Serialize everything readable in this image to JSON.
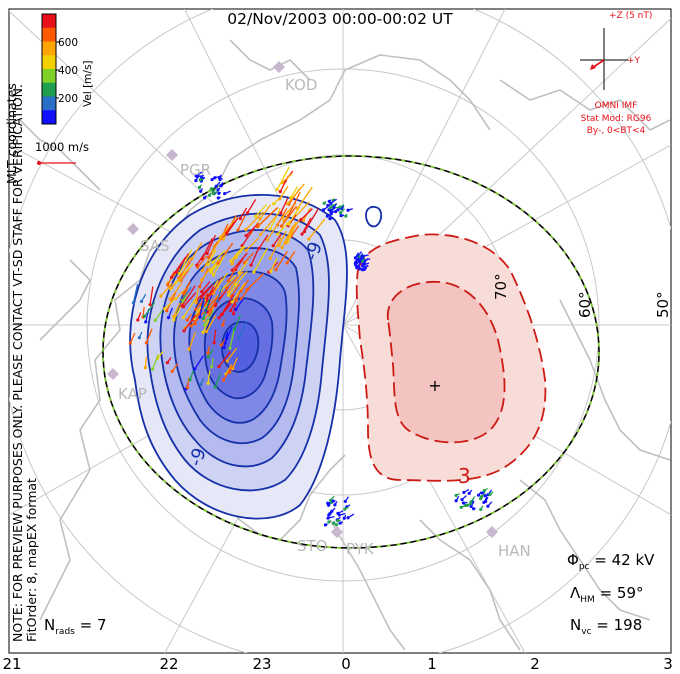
{
  "title": "02/Nov/2003 00:00-00:02 UT",
  "coordinates_label": "MLT coordinates",
  "note": "NOTE: FOR PREVIEW PURPOSES ONLY. PLEASE CONTACT VT-SD STAFF FOR VERIFICATION.",
  "fit_order": "FitOrder: 8, mapEX format",
  "colorbar": {
    "label": "Vel [m/s]",
    "ticks": [
      "600",
      "400",
      "200"
    ],
    "colors": [
      "#e8101a",
      "#ff5a00",
      "#ffa500",
      "#f5d000",
      "#7fd12a",
      "#1f9f4f",
      "#2a6ec8",
      "#1010ff"
    ]
  },
  "vector_scale": "1000 m/s",
  "imf": {
    "z_label": "+Z (5 nT)",
    "y_label": "+Y",
    "source": "OMNI IMF",
    "stat_mod": "Stat Mod: RG96",
    "condition": "By-, 0<BT<4"
  },
  "stats": {
    "phi_pc_label": "Φ",
    "phi_pc_sub": "pc",
    "phi_pc_value": "= 42 kV",
    "lambda_hm_label": "Λ",
    "lambda_hm_sub": "HM",
    "lambda_hm_value": "= 59°",
    "n_vc_label": "N",
    "n_vc_sub": "vc",
    "n_vc_value": "= 198",
    "n_rads_label": "N",
    "n_rads_sub": "rads",
    "n_rads_value": "= 7"
  },
  "mlt_ticks": [
    "21",
    "22",
    "23",
    "0",
    "1",
    "2",
    "3"
  ],
  "latitude_labels": [
    "70°",
    "60°",
    "50°"
  ],
  "contour_labels": [
    "-9",
    "-9",
    "3"
  ],
  "radar_stations": [
    "KOD",
    "PGR",
    "SAS",
    "KAP",
    "STO",
    "PYK",
    "HAN"
  ],
  "colors": {
    "negative_contour": "#1530a8",
    "positive_contour": "#cc1a14",
    "negative_fill": "#5560e0",
    "positive_fill": "#f4c4c0",
    "heppner_maynard": "#7fd12a",
    "map_grey": "#c0c0c0"
  }
}
